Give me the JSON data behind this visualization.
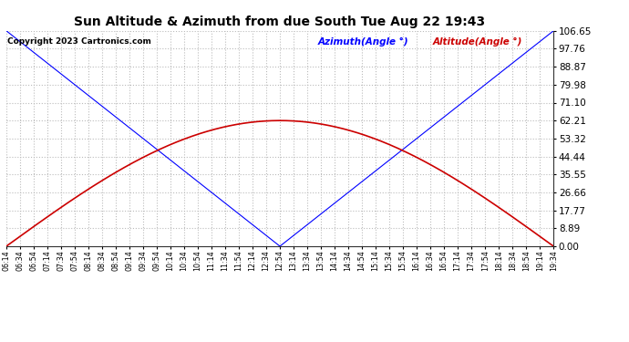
{
  "title": "Sun Altitude & Azimuth from due South Tue Aug 22 19:43",
  "copyright": "Copyright 2023 Cartronics.com",
  "legend_azimuth": "Azimuth(Angle °)",
  "legend_altitude": "Altitude(Angle °)",
  "azimuth_color": "#0000ff",
  "altitude_color": "#cc0000",
  "background_color": "#ffffff",
  "grid_color": "#bbbbbb",
  "ymin": 0.0,
  "ymax": 106.65,
  "yticks": [
    0.0,
    8.89,
    17.77,
    26.66,
    35.55,
    44.44,
    53.32,
    62.21,
    71.1,
    79.98,
    88.87,
    97.76,
    106.65
  ],
  "tick_labels": [
    "06:14",
    "06:34",
    "06:54",
    "07:14",
    "07:34",
    "07:54",
    "08:14",
    "08:34",
    "08:54",
    "09:14",
    "09:34",
    "09:54",
    "10:14",
    "10:34",
    "10:54",
    "11:14",
    "11:34",
    "11:54",
    "12:14",
    "12:34",
    "12:54",
    "13:14",
    "13:34",
    "13:54",
    "14:14",
    "14:34",
    "14:54",
    "15:14",
    "15:34",
    "15:54",
    "16:14",
    "16:34",
    "16:54",
    "17:14",
    "17:34",
    "17:54",
    "18:14",
    "18:34",
    "18:54",
    "19:14",
    "19:34"
  ],
  "az_min_label": "12:54",
  "alt_peak": 62.21,
  "alt_peak_label": "12:54"
}
